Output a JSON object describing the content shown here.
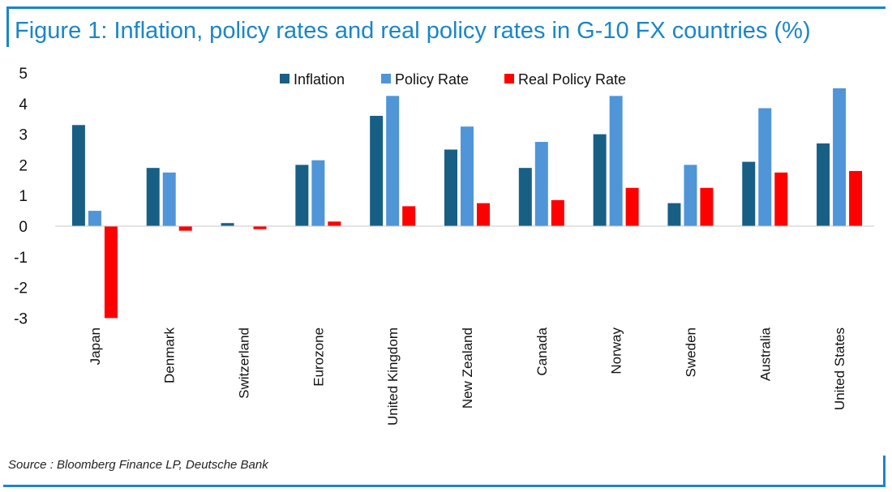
{
  "title": "Figure 1: Inflation, policy rates and real policy rates in G-10 FX countries (%)",
  "source": "Source : Bloomberg Finance LP, Deutsche Bank",
  "chart_data": {
    "type": "bar",
    "title": "Figure 1: Inflation, policy rates and real policy rates in G-10 FX countries (%)",
    "xlabel": "",
    "ylabel": "",
    "ylim": [
      -3,
      5
    ],
    "yticks": [
      5,
      4,
      3,
      2,
      1,
      0,
      -1,
      -2,
      -3
    ],
    "grid": false,
    "legend_position": "top-center",
    "categories": [
      "Japan",
      "Denmark",
      "Switzerland",
      "Eurozone",
      "United Kingdom",
      "New Zealand",
      "Canada",
      "Norway",
      "Sweden",
      "Australia",
      "United States"
    ],
    "series": [
      {
        "name": "Inflation",
        "color": "#185f86",
        "values": [
          3.3,
          1.9,
          0.1,
          2.0,
          3.6,
          2.5,
          1.9,
          3.0,
          0.75,
          2.1,
          2.7
        ]
      },
      {
        "name": "Policy Rate",
        "color": "#4f95d8",
        "values": [
          0.5,
          1.75,
          0.0,
          2.15,
          4.25,
          3.25,
          2.75,
          4.25,
          2.0,
          3.85,
          4.5
        ]
      },
      {
        "name": "Real Policy Rate",
        "color": "#ff0000",
        "values": [
          -3.0,
          -0.15,
          -0.1,
          0.15,
          0.65,
          0.75,
          0.85,
          1.25,
          1.25,
          1.75,
          1.8
        ]
      }
    ]
  }
}
